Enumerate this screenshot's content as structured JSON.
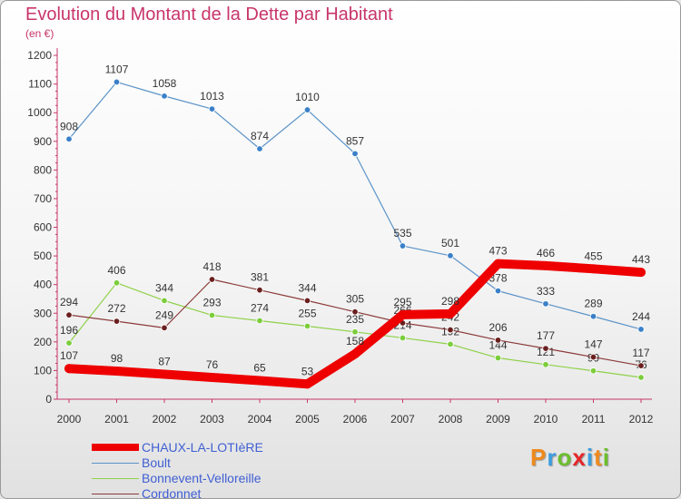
{
  "title": "Evolution du Montant de la Dette par Habitant",
  "subtitle": "(en €)",
  "brand": {
    "text": "Proxiti",
    "letter_colors": [
      "#f08a1c",
      "#3b9de0",
      "#6cbe2d",
      "#e5262a",
      "#3b9de0",
      "#f08a1c",
      "#6cbe2d"
    ]
  },
  "chart_data": {
    "type": "line",
    "x": [
      "2000",
      "2001",
      "2002",
      "2003",
      "2004",
      "2005",
      "2006",
      "2007",
      "2008",
      "2009",
      "2010",
      "2011",
      "2012"
    ],
    "ylim": [
      0,
      1200
    ],
    "y_ticks": [
      "0",
      "100",
      "200",
      "300",
      "400",
      "500",
      "600",
      "700",
      "800",
      "900",
      "1000",
      "1100",
      "1200"
    ],
    "grid": false,
    "legend_position": "bottom-left",
    "series": [
      {
        "name": "Boult",
        "color": "#5b93c8",
        "point_color": "#3a80c9",
        "values": [
          908,
          1107,
          1058,
          1013,
          874,
          1010,
          857,
          535,
          501,
          378,
          333,
          289,
          244
        ]
      },
      {
        "name": "Bonnevent-Velloreille",
        "color": "#8fd14a",
        "point_color": "#7ccd3c",
        "values": [
          196,
          406,
          344,
          293,
          274,
          255,
          235,
          214,
          192,
          144,
          121,
          99,
          76
        ]
      },
      {
        "name": "Cordonnet",
        "color": "#8b3a3a",
        "point_color": "#6b1f1f",
        "values": [
          294,
          272,
          249,
          418,
          381,
          344,
          305,
          266,
          242,
          206,
          177,
          147,
          117
        ]
      },
      {
        "name": "CHAUX-LA-LOTIèRE",
        "color": "#ee0000",
        "point_color": "#ee0000",
        "values": [
          107,
          98,
          87,
          76,
          65,
          53,
          158,
          295,
          298,
          473,
          466,
          455,
          443
        ]
      }
    ],
    "legend_order": [
      "CHAUX-LA-LOTIèRE",
      "Boult",
      "Bonnevent-Velloreille",
      "Cordonnet"
    ]
  }
}
